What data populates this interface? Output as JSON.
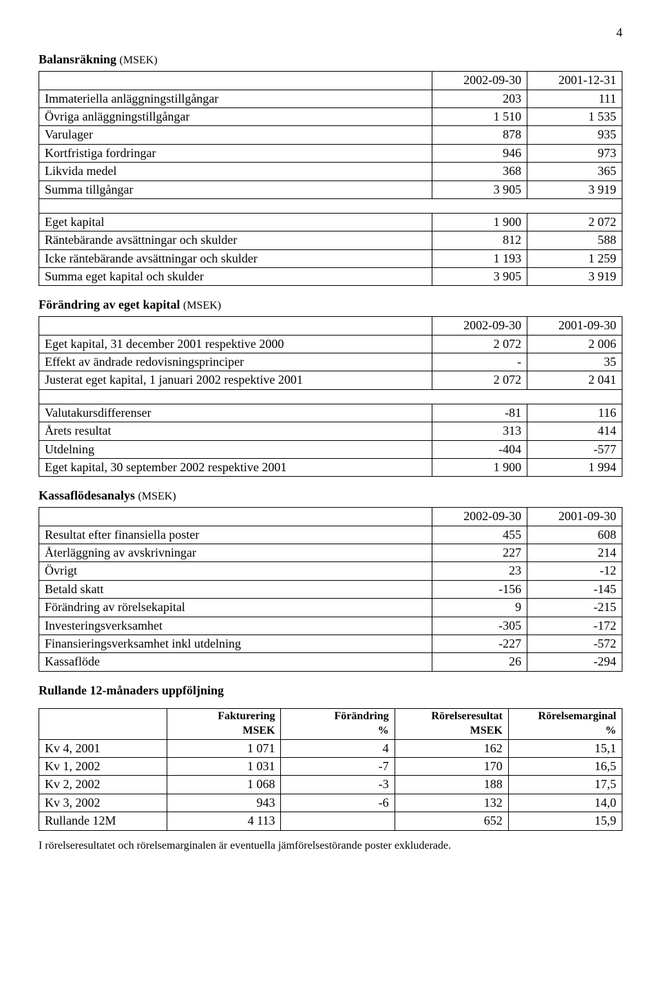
{
  "page_number": "4",
  "sections": {
    "balance": {
      "title": "Balansräkning",
      "unit": "(MSEK)",
      "col1": "2002-09-30",
      "col2": "2001-12-31",
      "rows": [
        {
          "label": "Immateriella anläggningstillgångar",
          "v1": "203",
          "v2": "111"
        },
        {
          "label": "Övriga anläggningstillgångar",
          "v1": "1 510",
          "v2": "1 535"
        },
        {
          "label": "Varulager",
          "v1": "878",
          "v2": "935"
        },
        {
          "label": "Kortfristiga fordringar",
          "v1": "946",
          "v2": "973"
        },
        {
          "label": "Likvida medel",
          "v1": "368",
          "v2": "365"
        },
        {
          "label": "Summa tillgångar",
          "v1": "3 905",
          "v2": "3 919"
        }
      ],
      "rows2": [
        {
          "label": "Eget kapital",
          "v1": "1 900",
          "v2": "2 072"
        },
        {
          "label": "Räntebärande avsättningar och skulder",
          "v1": "812",
          "v2": "588"
        },
        {
          "label": "Icke räntebärande avsättningar och skulder",
          "v1": "1 193",
          "v2": "1 259"
        },
        {
          "label": "Summa eget kapital och skulder",
          "v1": "3 905",
          "v2": "3 919"
        }
      ]
    },
    "equity": {
      "title": "Förändring av eget kapital",
      "unit": "(MSEK)",
      "col1": "2002-09-30",
      "col2": "2001-09-30",
      "rows": [
        {
          "label": "Eget kapital, 31 december 2001 respektive 2000",
          "v1": "2 072",
          "v2": "2 006"
        },
        {
          "label": "Effekt av ändrade redovisningsprinciper",
          "v1": "-",
          "v2": "35"
        },
        {
          "label": "Justerat eget kapital, 1 januari 2002 respektive 2001",
          "v1": "2 072",
          "v2": "2 041"
        }
      ],
      "rows2": [
        {
          "label": "Valutakursdifferenser",
          "v1": "-81",
          "v2": "116"
        },
        {
          "label": "Årets resultat",
          "v1": "313",
          "v2": "414"
        },
        {
          "label": "Utdelning",
          "v1": "-404",
          "v2": "-577"
        },
        {
          "label": "Eget kapital, 30 september 2002 respektive 2001",
          "v1": "1 900",
          "v2": "1 994"
        }
      ]
    },
    "cashflow": {
      "title": "Kassaflödesanalys",
      "unit": "(MSEK)",
      "col1": "2002-09-30",
      "col2": "2001-09-30",
      "rows": [
        {
          "label": "Resultat efter finansiella poster",
          "v1": "455",
          "v2": "608"
        },
        {
          "label": "Återläggning av avskrivningar",
          "v1": "227",
          "v2": "214"
        },
        {
          "label": "Övrigt",
          "v1": "23",
          "v2": "-12"
        },
        {
          "label": "Betald skatt",
          "v1": "-156",
          "v2": "-145"
        },
        {
          "label": "Förändring av rörelsekapital",
          "v1": "9",
          "v2": "-215"
        },
        {
          "label": "Investeringsverksamhet",
          "v1": "-305",
          "v2": "-172"
        },
        {
          "label": "Finansieringsverksamhet inkl utdelning",
          "v1": "-227",
          "v2": "-572"
        },
        {
          "label": "Kassaflöde",
          "v1": "26",
          "v2": "-294"
        }
      ]
    },
    "rolling": {
      "title": "Rullande 12-månaders uppföljning",
      "headers": [
        {
          "l1": "Fakturering",
          "l2": "MSEK"
        },
        {
          "l1": "Förändring",
          "l2": "%"
        },
        {
          "l1": "Rörelseresultat",
          "l2": "MSEK"
        },
        {
          "l1": "Rörelsemarginal",
          "l2": "%"
        }
      ],
      "rows": [
        {
          "label": "Kv 4, 2001",
          "v1": "1 071",
          "v2": "4",
          "v3": "162",
          "v4": "15,1"
        },
        {
          "label": "Kv 1, 2002",
          "v1": "1 031",
          "v2": "-7",
          "v3": "170",
          "v4": "16,5"
        },
        {
          "label": "Kv 2, 2002",
          "v1": "1 068",
          "v2": "-3",
          "v3": "188",
          "v4": "17,5"
        },
        {
          "label": "Kv 3, 2002",
          "v1": "943",
          "v2": "-6",
          "v3": "132",
          "v4": "14,0"
        },
        {
          "label": "Rullande 12M",
          "v1": "4 113",
          "v2": "",
          "v3": "652",
          "v4": "15,9"
        }
      ]
    }
  },
  "footnote": "I rörelseresultatet och rörelsemarginalen är eventuella jämförelsestörande poster exkluderade.",
  "layout": {
    "col_widths": {
      "label": "58%",
      "num": "14%"
    },
    "rolling_col_widths": {
      "label": "22%",
      "num": "19.5%"
    }
  }
}
